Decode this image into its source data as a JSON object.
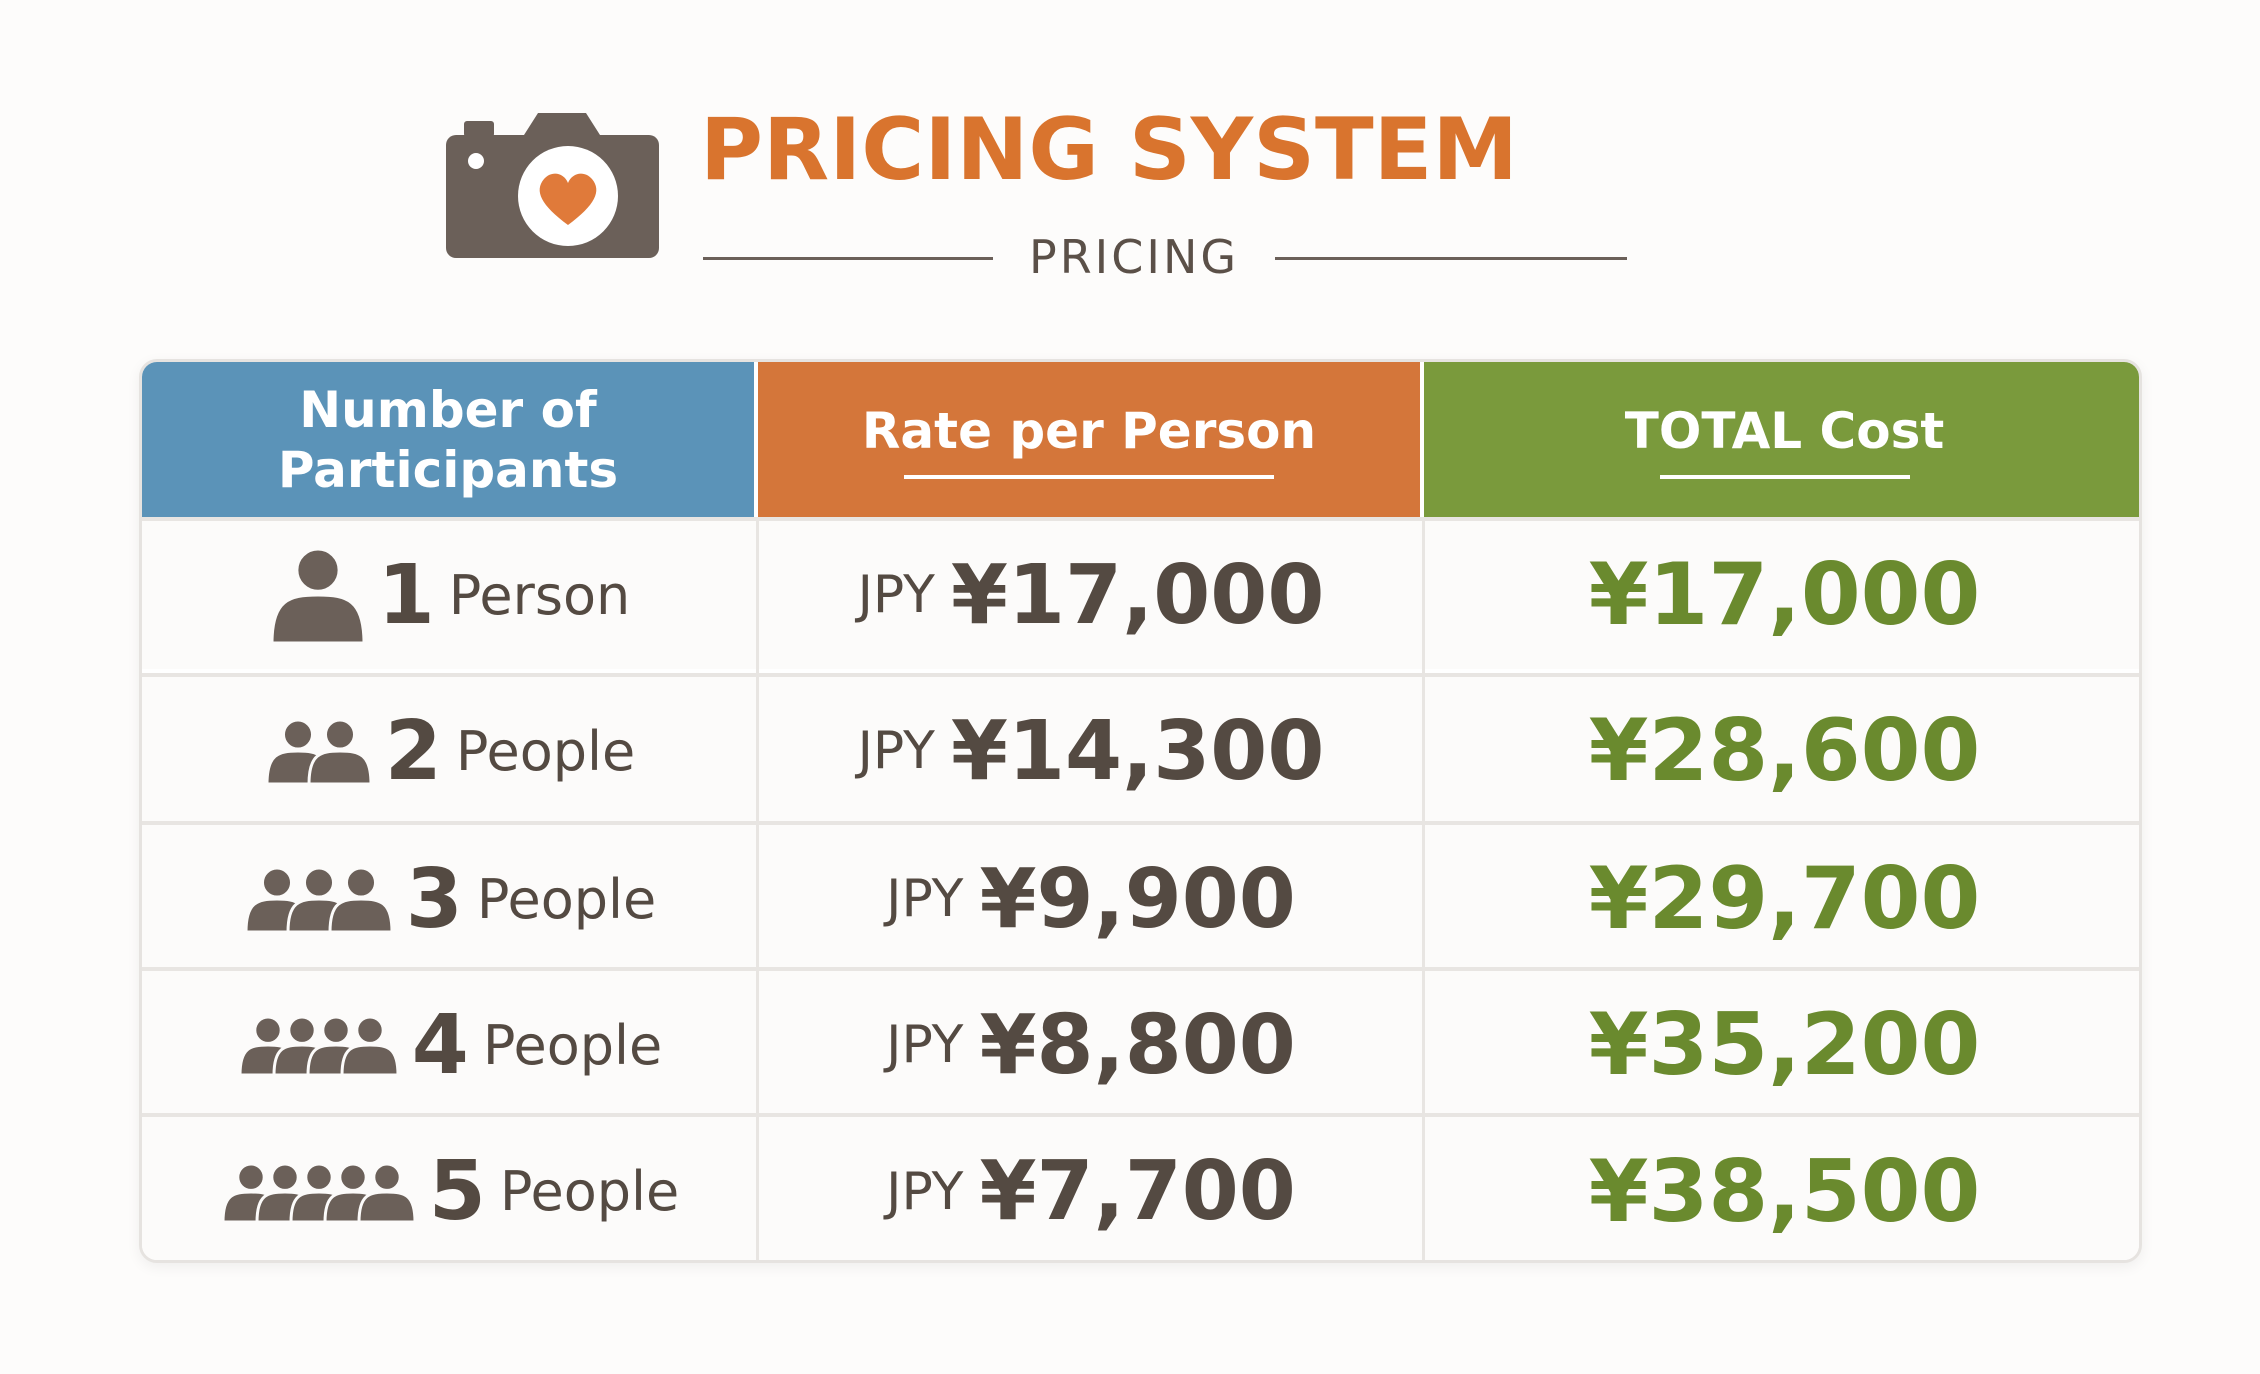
{
  "header": {
    "title": "PRICING SYSTEM",
    "subtitle": "PRICING"
  },
  "table": {
    "columns": [
      "Number of Participants",
      "Rate per Person",
      "TOTAL Cost"
    ],
    "rows": [
      {
        "count": "1",
        "unit": "Person",
        "currency": "JPY",
        "rate": "¥17,000",
        "total": "¥17,000"
      },
      {
        "count": "2",
        "unit": "People",
        "currency": "JPY",
        "rate": "¥14,300",
        "total": "¥28,600"
      },
      {
        "count": "3",
        "unit": "People",
        "currency": "JPY",
        "rate": "¥9,900",
        "total": "¥29,700"
      },
      {
        "count": "4",
        "unit": "People",
        "currency": "JPY",
        "rate": "¥8,800",
        "total": "¥35,200"
      },
      {
        "count": "5",
        "unit": "People",
        "currency": "JPY",
        "rate": "¥7,700",
        "total": "¥38,500"
      }
    ]
  }
}
